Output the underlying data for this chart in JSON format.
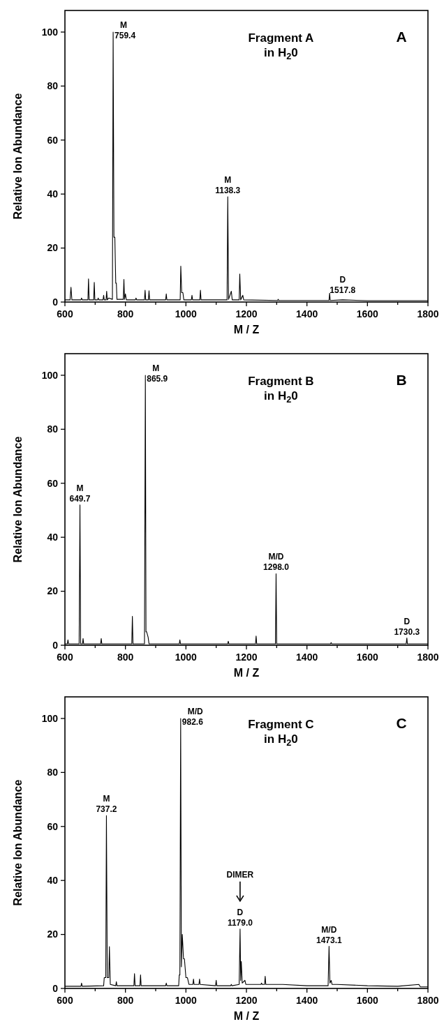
{
  "chart_data": [
    {
      "type": "line",
      "title": "Fragment A",
      "subtitle": "in   H$_{2}$0",
      "xlabel": "M / Z",
      "ylabel": "Relative Ion Abundance",
      "xlim": [
        600,
        1800
      ],
      "xticks": [
        600,
        {
          "value": 700,
          "label": null
        },
        800,
        {
          "value": 900,
          "label": null
        },
        1000,
        {
          "value": 1100,
          "label": null
        },
        1200,
        {
          "value": 1300,
          "label": null
        },
        1400,
        {
          "value": 1500,
          "label": null
        },
        1600,
        {
          "value": 1700,
          "label": null
        },
        1800
      ],
      "ylim": [
        0,
        108
      ],
      "yticks": [
        0,
        20,
        40,
        60,
        80,
        100
      ],
      "annotations": [
        "A",
        {
          "text": "M\n759.4",
          "x": 759.4,
          "y": 100
        },
        {
          "text": "M\n1138.3",
          "x": 1138.3,
          "y": 39
        },
        {
          "text": "D\n1517.8",
          "x": 1517.8,
          "y": 2
        }
      ],
      "series": [
        {
          "color": "#000000",
          "x": [
            600,
            617,
            620,
            623,
            653,
            655,
            657,
            676,
            678,
            680,
            695,
            697,
            699,
            708,
            710,
            712,
            726,
            728,
            730,
            736,
            738,
            740,
            745,
            757,
            759.4,
            762,
            765,
            768,
            770,
            772,
            793,
            795,
            797,
            800,
            803,
            833,
            835,
            837,
            863,
            865,
            867,
            876,
            878,
            880,
            933,
            935,
            937,
            981,
            983,
            986,
            990,
            993,
            1018,
            1020,
            1022,
            1046,
            1048,
            1050,
            1100,
            1136,
            1138.3,
            1141,
            1150,
            1153,
            1176,
            1178,
            1181,
            1188,
            1191,
            1303,
            1305,
            1307,
            1400,
            1473,
            1475,
            1477,
            1517.8,
            1600,
            1700,
            1800
          ],
          "values": [
            0.8,
            0.8,
            5.5,
            0.8,
            0.8,
            1.5,
            0.8,
            0.8,
            8.6,
            0.8,
            0.8,
            7.3,
            0.8,
            0.8,
            1.5,
            0.8,
            0.8,
            2.5,
            0.8,
            0.8,
            4,
            0.8,
            1.5,
            1,
            100,
            24,
            24,
            7,
            7,
            1,
            1,
            8.4,
            1,
            3,
            0.8,
            0.8,
            1.5,
            0.8,
            0.8,
            4.4,
            0.8,
            0.8,
            4.2,
            0.8,
            0.8,
            3,
            0.8,
            0.8,
            13.3,
            3.5,
            3.5,
            0.8,
            0.8,
            2.5,
            0.8,
            0.8,
            4.4,
            0.8,
            0.8,
            0.8,
            39,
            1,
            4,
            0.8,
            0.8,
            10.4,
            0.8,
            2.5,
            0.8,
            0.6,
            1,
            0.6,
            0.6,
            0.6,
            3.3,
            0.6,
            0.8,
            0.5,
            0.5,
            0.5
          ]
        }
      ]
    },
    {
      "type": "line",
      "title": "Fragment B",
      "subtitle": "in   H$_{2}$0",
      "xlabel": "M / Z",
      "ylabel": "Relative Ion Abundance",
      "xlim": [
        600,
        1800
      ],
      "xticks": [
        600,
        {
          "value": 700,
          "label": null
        },
        800,
        {
          "value": 900,
          "label": null
        },
        1000,
        {
          "value": 1100,
          "label": null
        },
        1200,
        {
          "value": 1300,
          "label": null
        },
        1400,
        {
          "value": 1500,
          "label": null
        },
        1600,
        {
          "value": 1700,
          "label": null
        },
        1800
      ],
      "ylim": [
        0,
        108
      ],
      "yticks": [
        0,
        20,
        40,
        60,
        80,
        100
      ],
      "annotations": [
        "B",
        {
          "text": "M\n649.7",
          "x": 649.7,
          "y": 52
        },
        {
          "text": "M\n865.9",
          "x": 865.9,
          "y": 100
        },
        {
          "text": "M/D\n1298.0",
          "x": 1298.0,
          "y": 26.5
        },
        {
          "text": "D\n1730.3",
          "x": 1730.3,
          "y": 2.7
        }
      ],
      "series": [
        {
          "color": "#000000",
          "x": [
            600,
            608,
            610,
            612,
            647,
            649.7,
            652,
            658,
            660,
            662,
            718,
            720,
            722,
            821,
            823,
            825,
            863,
            865.9,
            868,
            870,
            875,
            878,
            978,
            980,
            982,
            1138,
            1140,
            1142,
            1230,
            1232,
            1234,
            1296,
            1298.0,
            1300,
            1478,
            1480,
            1482,
            1728,
            1730.3,
            1732,
            1800
          ],
          "values": [
            0.5,
            0.5,
            2,
            0.5,
            0.5,
            52,
            0.5,
            0.5,
            2.5,
            0.5,
            0.5,
            2.5,
            0.5,
            0.5,
            10.7,
            0.5,
            0.5,
            100,
            5,
            5,
            3,
            0.5,
            0.5,
            2,
            0.5,
            0.5,
            1.5,
            0.5,
            0.5,
            3.4,
            0.5,
            0.5,
            26.5,
            0.5,
            0.5,
            1,
            0.5,
            0.5,
            2.7,
            0.5,
            0.5
          ]
        }
      ]
    },
    {
      "type": "line",
      "title": "Fragment C",
      "subtitle": "in   H$_{2}$0",
      "xlabel": "M / Z",
      "ylabel": "Relative Ion Abundance",
      "xlim": [
        600,
        1800
      ],
      "xticks": [
        600,
        {
          "value": 700,
          "label": null
        },
        800,
        {
          "value": 900,
          "label": null
        },
        1000,
        {
          "value": 1100,
          "label": null
        },
        1200,
        {
          "value": 1300,
          "label": null
        },
        1400,
        {
          "value": 1500,
          "label": null
        },
        1600,
        {
          "value": 1700,
          "label": null
        },
        1800
      ],
      "ylim": [
        0,
        108
      ],
      "yticks": [
        0,
        20,
        40,
        60,
        80,
        100
      ],
      "annotations": [
        "C",
        {
          "text": "M\n737.2",
          "x": 737.2,
          "y": 64
        },
        {
          "text": "M/D\n982.6",
          "x": 982.6,
          "y": 100
        },
        "DIMER",
        {
          "text": "D\n1179.0",
          "x": 1179.0,
          "y": 22
        },
        {
          "text": "M/D\n1473.1",
          "x": 1473.1,
          "y": 15.6
        }
      ],
      "series": [
        {
          "color": "#000000",
          "x": [
            600,
            653,
            655,
            657,
            728,
            730,
            735,
            737.2,
            740,
            745,
            747,
            750,
            768,
            770,
            772,
            828,
            830,
            832,
            848,
            850,
            852,
            933,
            935,
            937,
            976,
            978,
            980,
            982.6,
            985,
            988,
            992,
            995,
            1000,
            1005,
            1010,
            1023,
            1025,
            1027,
            1043,
            1045,
            1047,
            1098,
            1100,
            1102,
            1148,
            1150,
            1152,
            1176,
            1179.0,
            1181,
            1183,
            1186,
            1195,
            1198,
            1248,
            1250,
            1252,
            1260,
            1262,
            1264,
            1320,
            1400,
            1470,
            1473.1,
            1476,
            1480,
            1483,
            1500,
            1600,
            1700,
            1770,
            1775,
            1800
          ],
          "values": [
            0.8,
            0.8,
            2,
            0.8,
            1,
            4,
            4,
            64,
            4,
            4,
            15.5,
            1.5,
            1,
            2.5,
            1,
            1,
            5.5,
            1,
            1,
            5,
            1,
            1,
            2,
            1,
            1,
            5,
            5,
            100,
            8,
            20,
            11,
            11,
            4,
            4,
            1.5,
            1.5,
            3.5,
            1.5,
            1.5,
            3.5,
            1.5,
            1,
            3,
            1,
            1,
            1.5,
            1,
            1.5,
            22,
            3,
            10,
            2,
            3,
            1.5,
            1.5,
            2,
            1.5,
            1.5,
            4.5,
            1.5,
            1.5,
            1,
            1,
            15.6,
            2,
            3,
            1.5,
            1.5,
            1,
            0.8,
            1.5,
            0.6,
            0.6
          ]
        }
      ]
    }
  ]
}
